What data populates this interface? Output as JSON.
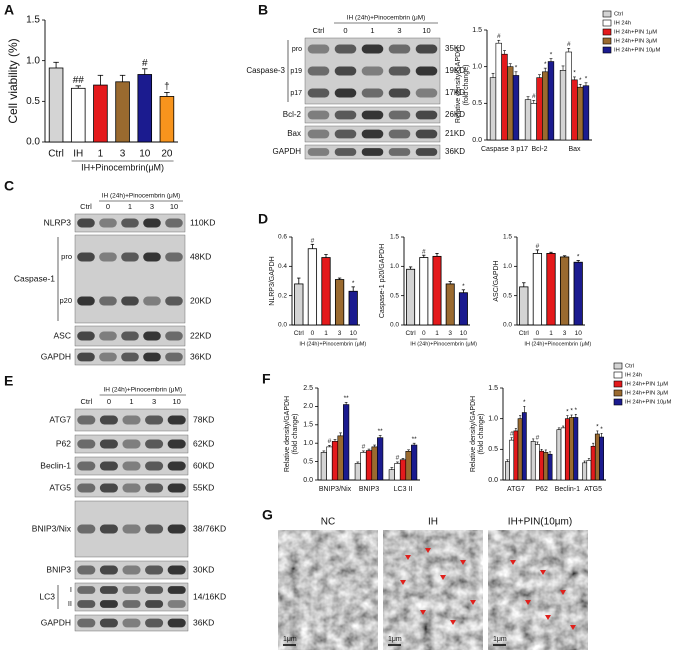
{
  "panel_labels": [
    "A",
    "B",
    "C",
    "D",
    "E",
    "F",
    "G"
  ],
  "chart_data": [
    {
      "type": "bar",
      "ylabel": "Cell viability (%)",
      "xlabel": "IH+Pinocembrin(μM)",
      "categories": [
        "Ctrl",
        "IH",
        "1",
        "3",
        "10",
        "20"
      ],
      "values": [
        0.91,
        0.66,
        0.7,
        0.74,
        0.83,
        0.56
      ],
      "errors": [
        0.07,
        0.03,
        0.12,
        0.08,
        0.07,
        0.05
      ],
      "sig": [
        null,
        "##",
        null,
        null,
        "#",
        "†"
      ],
      "colors": [
        "#d4d4d4",
        "#ffffff",
        "#e41a1c",
        "#9a6a2f",
        "#1b1b8f",
        "#f7941d"
      ],
      "ylim": [
        0,
        1.5
      ],
      "yticks": [
        {
          "value": 0,
          "label": "0.0"
        },
        0.5,
        {
          "value": 1,
          "label": "1.0"
        },
        1.5
      ]
    },
    {
      "type": "grouped_bar",
      "ylabel": [
        "Relative density/GAPDH",
        "(fold change)"
      ],
      "categories": [
        "Caspase 3 p17",
        "Bcl-2",
        "Bax"
      ],
      "series": [
        {
          "name": "Ctrl",
          "color": "#d4d4d4",
          "values": [
            0.85,
            0.55,
            0.95
          ],
          "errors": [
            0.06,
            0.04,
            0.06
          ],
          "sig": [
            null,
            null,
            null
          ]
        },
        {
          "name": "IH 24h",
          "color": "#ffffff",
          "values": [
            1.32,
            0.5,
            1.2
          ],
          "errors": [
            0.04,
            0.04,
            0.05
          ],
          "sig": [
            "#",
            "#",
            "#"
          ]
        },
        {
          "name": "IH 24h+PIN 1μM",
          "color": "#e41a1c",
          "values": [
            1.17,
            0.85,
            0.82
          ],
          "errors": [
            0.05,
            0.04,
            0.04
          ],
          "sig": [
            null,
            null,
            "*"
          ]
        },
        {
          "name": "IH 24h+PIN 3μM",
          "color": "#9a6a2f",
          "values": [
            1.0,
            0.93,
            0.72
          ],
          "errors": [
            0.04,
            0.05,
            0.04
          ],
          "sig": [
            null,
            "*",
            "*"
          ]
        },
        {
          "name": "IH 24h+PIN 10μM",
          "color": "#1b1b8f",
          "values": [
            0.88,
            1.07,
            0.74
          ],
          "errors": [
            0.05,
            0.04,
            0.04
          ],
          "sig": [
            "*",
            "*",
            "*"
          ]
        }
      ],
      "ylim": [
        0,
        1.5
      ],
      "yticks": [
        {
          "value": 0,
          "label": "0.0"
        },
        0.5,
        {
          "value": 1,
          "label": "1.0"
        },
        1.5
      ]
    },
    {
      "type": "bar",
      "ylabel": "NLRP3/GAPDH",
      "xlabel": "IH (24h)+Pinocembrin (μM)",
      "categories": [
        "Ctrl",
        "0",
        "1",
        "3",
        "10"
      ],
      "values": [
        0.28,
        0.52,
        0.46,
        0.31,
        0.23
      ],
      "errors": [
        0.04,
        0.03,
        0.02,
        0.01,
        0.03
      ],
      "sig": [
        null,
        "#",
        null,
        null,
        "*"
      ],
      "colors": [
        "#d4d4d4",
        "#ffffff",
        "#e41a1c",
        "#9a6a2f",
        "#1b1b8f"
      ],
      "ylim": [
        0,
        0.6
      ],
      "yticks": [
        {
          "value": 0,
          "label": "0.0"
        },
        0.2,
        0.4,
        0.6
      ]
    },
    {
      "type": "bar",
      "ylabel": "Caspase-1 p20/GAPDH",
      "xlabel": "IH (24h)+Pinocembrin (μM)",
      "categories": [
        "Ctrl",
        "0",
        "1",
        "3",
        "10"
      ],
      "values": [
        0.95,
        1.15,
        1.17,
        0.7,
        0.55
      ],
      "errors": [
        0.04,
        0.04,
        0.05,
        0.04,
        0.05
      ],
      "sig": [
        null,
        "#",
        null,
        null,
        "*"
      ],
      "colors": [
        "#d4d4d4",
        "#ffffff",
        "#e41a1c",
        "#9a6a2f",
        "#1b1b8f"
      ],
      "ylim": [
        0,
        1.5
      ],
      "yticks": [
        {
          "value": 0,
          "label": "0.0"
        },
        0.5,
        {
          "value": 1,
          "label": "1.0"
        },
        1.5
      ]
    },
    {
      "type": "bar",
      "ylabel": "ASC/GAPDH",
      "xlabel": "IH (24h)+Pinocembrin (μM)",
      "categories": [
        "Ctrl",
        "0",
        "1",
        "3",
        "10"
      ],
      "values": [
        0.65,
        1.22,
        1.22,
        1.16,
        1.07
      ],
      "errors": [
        0.07,
        0.06,
        0.02,
        0.02,
        0.03
      ],
      "sig": [
        null,
        "#",
        null,
        null,
        "*"
      ],
      "colors": [
        "#d4d4d4",
        "#ffffff",
        "#e41a1c",
        "#9a6a2f",
        "#1b1b8f"
      ],
      "ylim": [
        0,
        1.5
      ],
      "yticks": [
        {
          "value": 0,
          "label": "0.0"
        },
        0.5,
        {
          "value": 1,
          "label": "1.0"
        },
        1.5
      ]
    },
    {
      "type": "grouped_bar",
      "ylabel": [
        "Relative density/GAPDH",
        "(fold change)"
      ],
      "categories": [
        "BNIP3/Nix",
        "BNIP3",
        "LC3 II"
      ],
      "series": [
        {
          "name": "Ctrl",
          "color": "#d4d4d4",
          "values": [
            0.75,
            0.45,
            0.28
          ],
          "errors": [
            0.04,
            0.04,
            0.06
          ],
          "sig": [
            null,
            null,
            null
          ]
        },
        {
          "name": "IH 24h",
          "color": "#ffffff",
          "values": [
            0.9,
            0.75,
            0.45
          ],
          "errors": [
            0.04,
            0.04,
            0.04
          ],
          "sig": [
            "#",
            "#",
            "#"
          ]
        },
        {
          "name": "IH 24h+PIN 1μM",
          "color": "#e41a1c",
          "values": [
            1.05,
            0.8,
            0.55
          ],
          "errors": [
            0.05,
            0.04,
            0.04
          ],
          "sig": [
            null,
            null,
            null
          ]
        },
        {
          "name": "IH 24h+PIN 3μM",
          "color": "#9a6a2f",
          "values": [
            1.2,
            0.9,
            0.78
          ],
          "errors": [
            0.08,
            0.05,
            0.04
          ],
          "sig": [
            null,
            null,
            null
          ]
        },
        {
          "name": "IH 24h+PIN 10μM",
          "color": "#1b1b8f",
          "values": [
            2.05,
            1.15,
            0.95
          ],
          "errors": [
            0.06,
            0.06,
            0.05
          ],
          "sig": [
            "**",
            "**",
            "**"
          ]
        }
      ],
      "ylim": [
        0,
        2.5
      ],
      "yticks": [
        {
          "value": 0,
          "label": "0.0"
        },
        0.5,
        {
          "value": 1,
          "label": "1.0"
        },
        1.5,
        {
          "value": 2,
          "label": "2.0"
        },
        2.5
      ]
    },
    {
      "type": "grouped_bar",
      "ylabel": [
        "Relative density/GAPDH",
        "(fold change)"
      ],
      "categories": [
        "ATG7",
        "P62",
        "Beclin-1",
        "ATG5"
      ],
      "series": [
        {
          "name": "Ctrl",
          "color": "#d4d4d4",
          "values": [
            0.3,
            0.63,
            0.82,
            0.28
          ],
          "errors": [
            0.03,
            0.04,
            0.03,
            0.03
          ],
          "sig": [
            null,
            null,
            null,
            null
          ]
        },
        {
          "name": "IH 24h",
          "color": "#ffffff",
          "values": [
            0.65,
            0.58,
            0.85,
            0.32
          ],
          "errors": [
            0.04,
            0.04,
            0.03,
            0.03
          ],
          "sig": [
            "#",
            "#",
            null,
            null
          ]
        },
        {
          "name": "IH 24h+PIN 1μM",
          "color": "#e41a1c",
          "values": [
            0.8,
            0.47,
            1.0,
            0.55
          ],
          "errors": [
            0.04,
            0.03,
            0.05,
            0.05
          ],
          "sig": [
            null,
            null,
            "*",
            null
          ]
        },
        {
          "name": "IH 24h+PIN 3μM",
          "color": "#9a6a2f",
          "values": [
            1.0,
            0.45,
            1.02,
            0.75
          ],
          "errors": [
            0.05,
            0.04,
            0.04,
            0.05
          ],
          "sig": [
            null,
            null,
            "*",
            "*"
          ]
        },
        {
          "name": "IH 24h+PIN 10μM",
          "color": "#1b1b8f",
          "values": [
            1.1,
            0.42,
            1.02,
            0.7
          ],
          "errors": [
            0.1,
            0.04,
            0.05,
            0.06
          ],
          "sig": [
            "*",
            null,
            "*",
            "*"
          ]
        }
      ],
      "ylim": [
        0,
        1.5
      ],
      "yticks": [
        {
          "value": 0,
          "label": "0.0"
        },
        0.5,
        {
          "value": 1,
          "label": "1.0"
        },
        1.5
      ]
    }
  ],
  "blots": [
    {
      "header": "IH (24h)+Pinocembrin (μM)",
      "lanes": [
        "Ctrl",
        "0",
        "1",
        "3",
        "10"
      ],
      "rows": [
        {
          "name": "Caspase-3",
          "sublabels": [
            "pro",
            "p19",
            "p17"
          ],
          "kd": [
            "35KD",
            "19KD",
            "17KD"
          ]
        },
        {
          "name": "Bcl-2",
          "kd": [
            "26KD"
          ]
        },
        {
          "name": "Bax",
          "kd": [
            "21KD"
          ]
        },
        {
          "name": "GAPDH",
          "kd": [
            "36KD"
          ]
        }
      ]
    },
    {
      "header": "IH (24h)+Pinocembrin (μM)",
      "lanes": [
        "Ctrl",
        "0",
        "1",
        "3",
        "10"
      ],
      "rows": [
        {
          "name": "NLRP3",
          "kd": [
            "110KD"
          ]
        },
        {
          "name": "Caspase-1",
          "sublabels": [
            "pro",
            "p20"
          ],
          "kd": [
            "48KD",
            "20KD"
          ]
        },
        {
          "name": "ASC",
          "kd": [
            "22KD"
          ]
        },
        {
          "name": "GAPDH",
          "kd": [
            "36KD"
          ]
        }
      ]
    },
    {
      "header": "IH (24h)+Pinocembrin (μM)",
      "lanes": [
        "Ctrl",
        "0",
        "1",
        "3",
        "10"
      ],
      "rows": [
        {
          "name": "ATG7",
          "kd": [
            "78KD"
          ]
        },
        {
          "name": "P62",
          "kd": [
            "62KD"
          ]
        },
        {
          "name": "Beclin-1",
          "kd": [
            "60KD"
          ]
        },
        {
          "name": "ATG5",
          "kd": [
            "55KD"
          ]
        },
        {
          "name": "BNIP3/Nix",
          "kd": [
            "38/76KD"
          ]
        },
        {
          "name": "BNIP3",
          "kd": [
            "30KD"
          ]
        },
        {
          "name": "LC3",
          "sublabels": [
            "I",
            "II"
          ],
          "kd": [
            "14/16KD"
          ]
        },
        {
          "name": "GAPDH",
          "kd": [
            "36KD"
          ]
        }
      ]
    }
  ],
  "micrographs": [
    {
      "title": "NC",
      "scale": "1μm"
    },
    {
      "title": "IH",
      "scale": "1μm"
    },
    {
      "title": "IH+PIN(10μm)",
      "scale": "1μm"
    }
  ]
}
